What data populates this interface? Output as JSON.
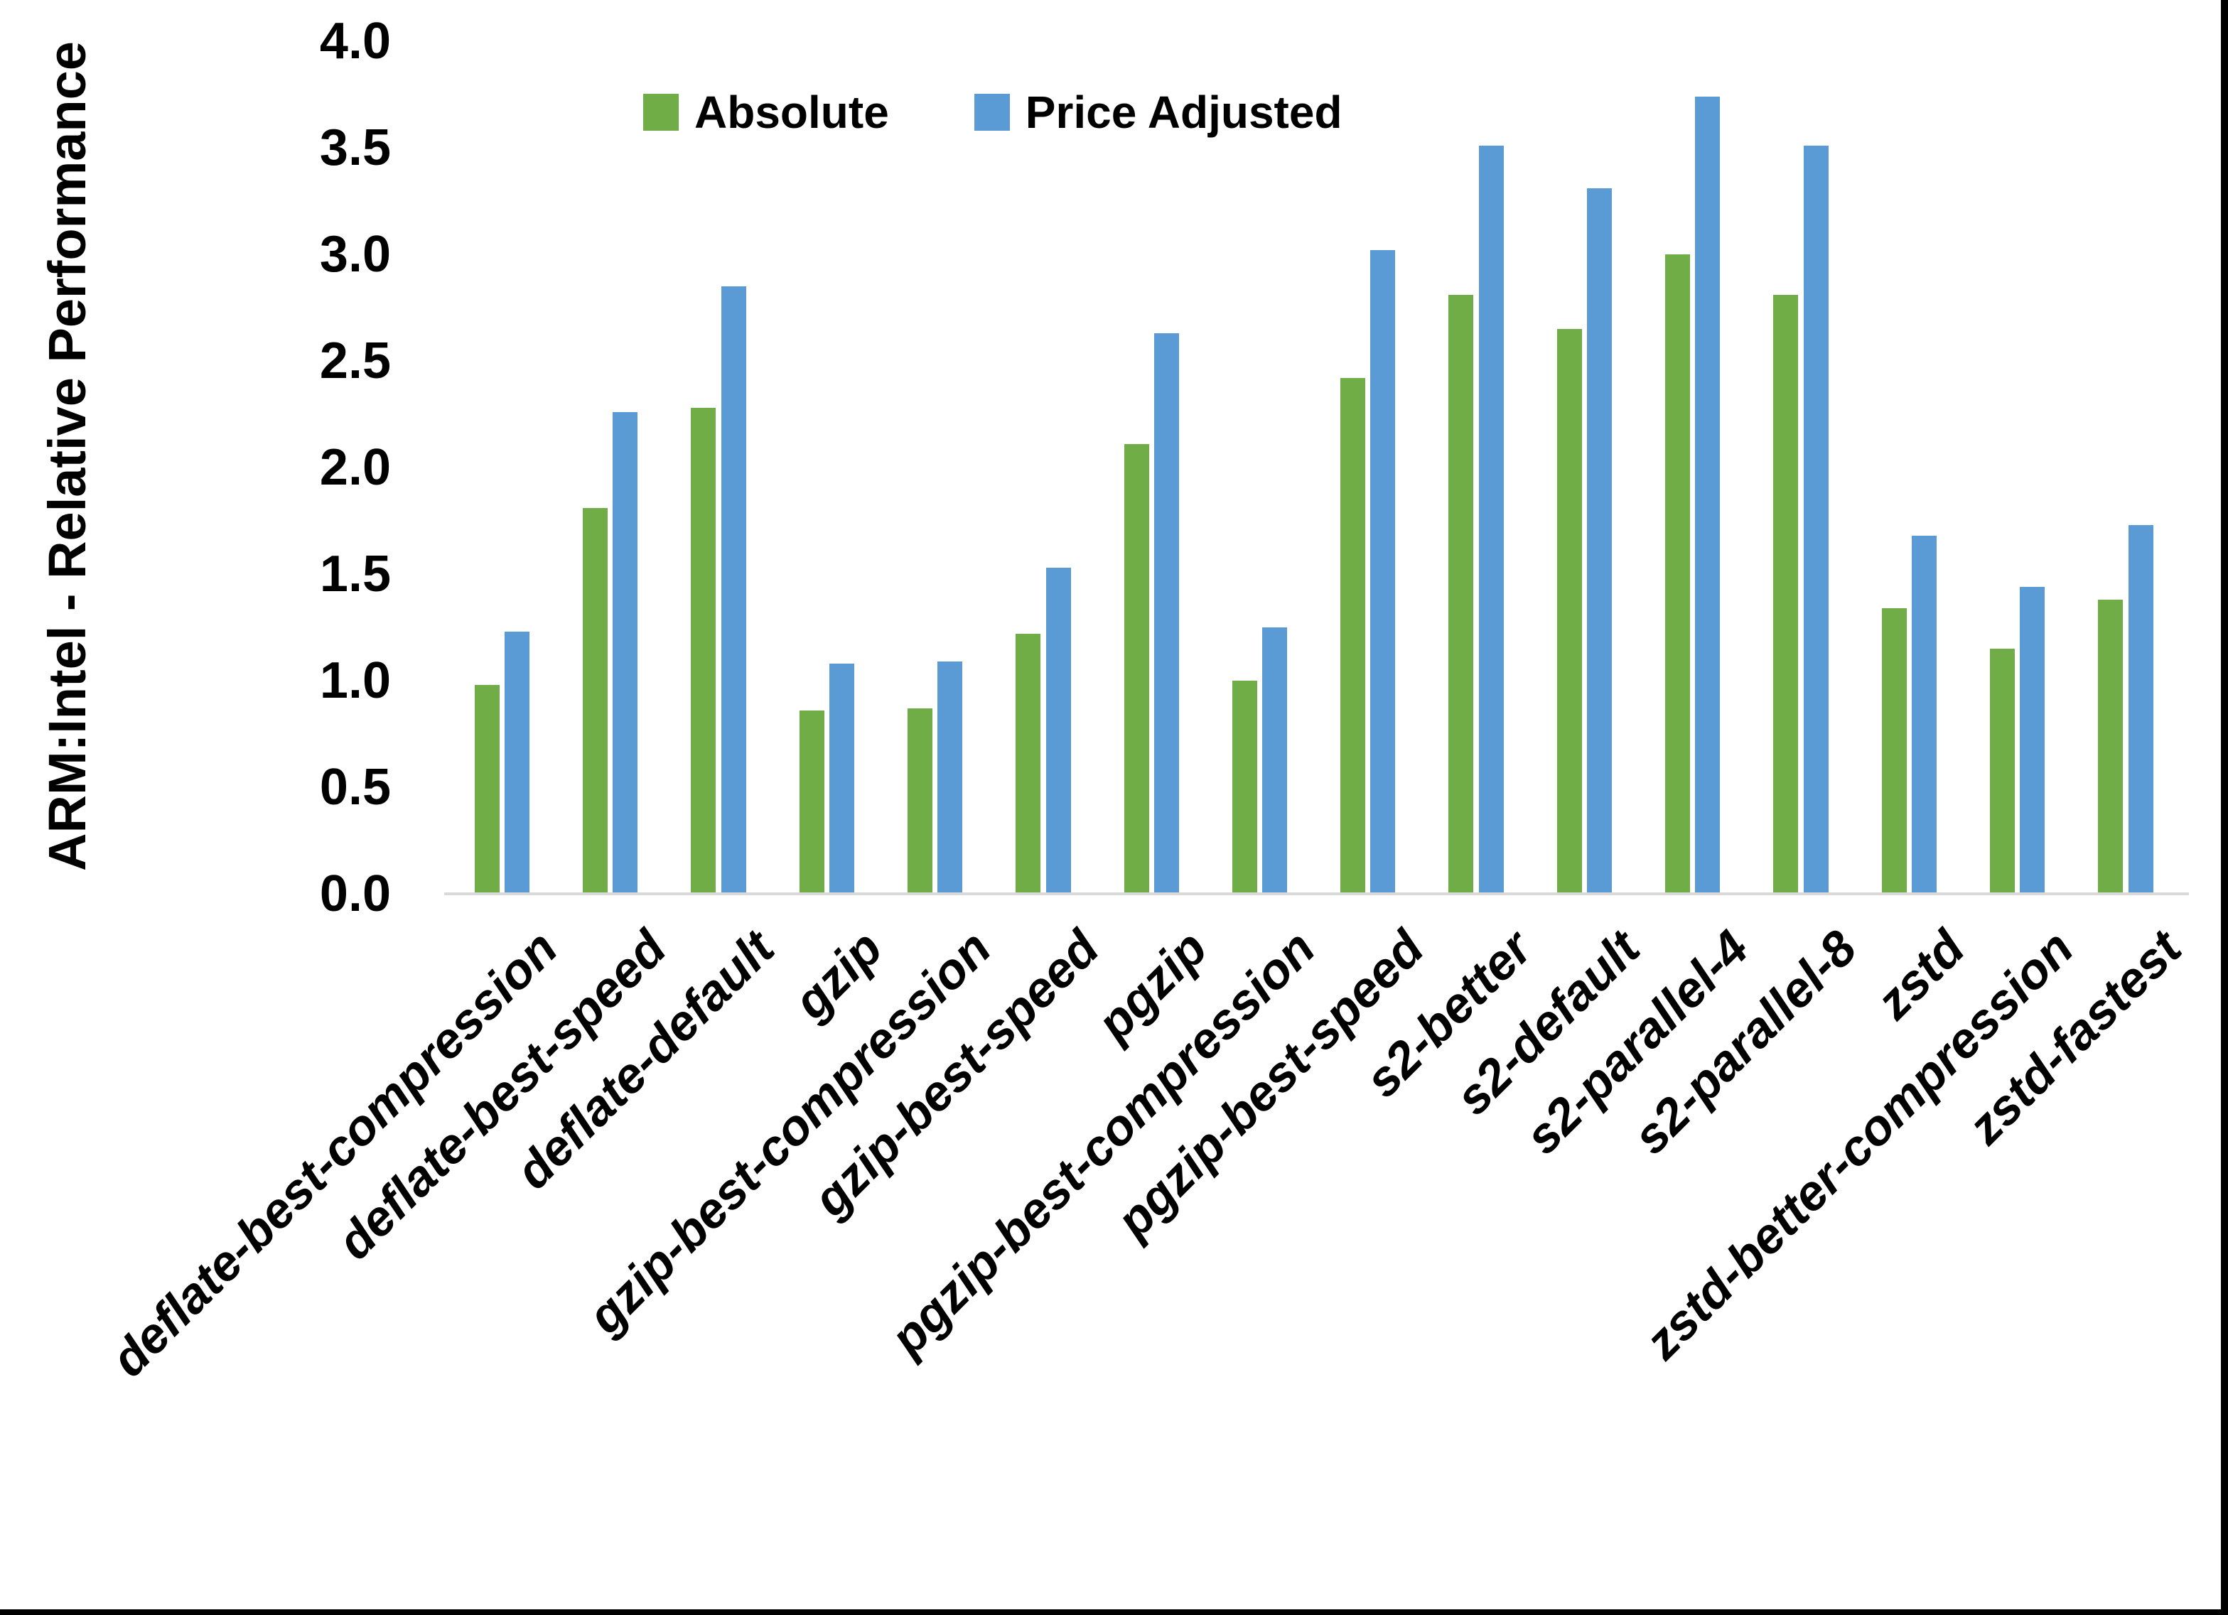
{
  "page": {
    "background": "#FFFFFF",
    "edge_border_color": "#000000"
  },
  "axes": {
    "y_title": "ARM:Intel - Relative Performance",
    "axis_line_color": "#D9D9D9",
    "text_color": "#000000"
  },
  "legend": {
    "items": [
      {
        "label": "Absolute",
        "color": "#70AD47"
      },
      {
        "label": "Price Adjusted",
        "color": "#5B9BD5"
      }
    ]
  },
  "chart_data": {
    "type": "bar",
    "title": "",
    "xlabel": "",
    "ylabel": "ARM:Intel - Relative Performance",
    "ylim": [
      0,
      4
    ],
    "ytick_step": 0.5,
    "ytick_labels": [
      "0.0",
      "0.5",
      "1.0",
      "1.5",
      "2.0",
      "2.5",
      "3.0",
      "3.5",
      "4.0"
    ],
    "grid": false,
    "legend_position": "top-center",
    "categories": [
      "deflate-best-compression",
      "deflate-best-speed",
      "deflate-default",
      "gzip",
      "gzip-best-compression",
      "gzip-best-speed",
      "pgzip",
      "pgzip-best-compression",
      "pgzip-best-speed",
      "s2-better",
      "s2-default",
      "s2-parallel-4",
      "s2-parallel-8",
      "zstd",
      "zstd-better-compression",
      "zstd-fastest"
    ],
    "series": [
      {
        "name": "Absolute",
        "color": "#70AD47",
        "values": [
          0.98,
          1.81,
          2.28,
          0.86,
          0.87,
          1.22,
          2.11,
          1.0,
          2.42,
          2.81,
          2.65,
          3.0,
          2.81,
          1.34,
          1.15,
          1.38
        ]
      },
      {
        "name": "Price Adjusted",
        "color": "#5B9BD5",
        "values": [
          1.23,
          2.26,
          2.85,
          1.08,
          1.09,
          1.53,
          2.63,
          1.25,
          3.02,
          3.51,
          3.31,
          3.74,
          3.51,
          1.68,
          1.44,
          1.73
        ]
      }
    ]
  }
}
